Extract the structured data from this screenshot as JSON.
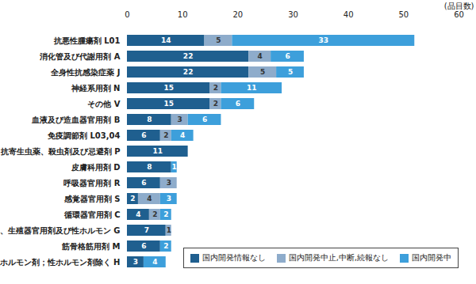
{
  "chart_data": {
    "type": "bar",
    "orientation": "horizontal",
    "stacked": true,
    "data_labels": true,
    "grid": false,
    "legend": "bottom-right",
    "xlabel": "(品目数)",
    "xlim": [
      0,
      60
    ],
    "xticks": [
      0,
      10,
      20,
      30,
      40,
      50,
      60
    ],
    "categories": [
      "抗悪性腫瘍剤 L01",
      "消化管及び代謝用剤 A",
      "全身性抗感染症薬 J",
      "神経系用剤 N",
      "その他 V",
      "血液及び造血器官用剤 B",
      "免疫調節剤 L03,04",
      "抗寄生虫薬、殺虫剤及び忌避剤 P",
      "皮膚科用剤 D",
      "呼吸器官用剤 R",
      "感覚器官用剤 S",
      "循環器官用剤 C",
      "泌尿、生殖器官用剤及び性ホルモン G",
      "筋骨格筋用剤 M",
      "全身性ホルモン剤；性ホルモン剤除く H"
    ],
    "series": [
      {
        "name": "国内開発情報なし",
        "color": "#1f5f8f",
        "values": [
          14,
          22,
          22,
          15,
          15,
          8,
          6,
          11,
          8,
          6,
          2,
          4,
          7,
          6,
          3
        ]
      },
      {
        "name": "国内開発中止,中断,続報なし",
        "color": "#8eaccb",
        "values": [
          5,
          4,
          5,
          2,
          2,
          3,
          2,
          null,
          null,
          3,
          4,
          2,
          1,
          null,
          null
        ]
      },
      {
        "name": "国内開発中",
        "color": "#3d9fdb",
        "values": [
          33,
          6,
          5,
          11,
          6,
          6,
          4,
          null,
          1,
          null,
          3,
          2,
          null,
          2,
          4
        ]
      }
    ]
  }
}
